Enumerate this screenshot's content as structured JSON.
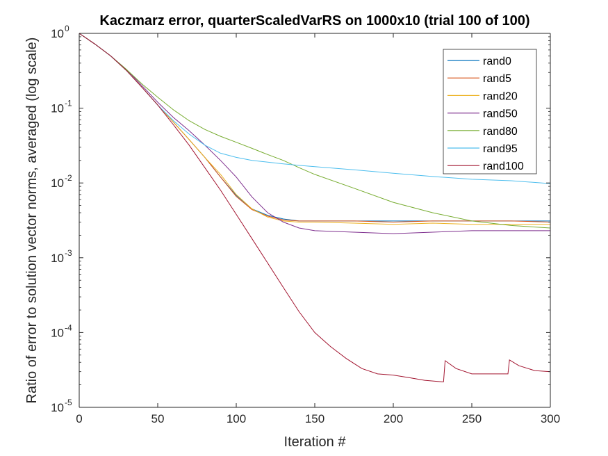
{
  "chart_data": {
    "type": "line",
    "title": "Kaczmarz error, quarterScaledVarRS on 1000x10 (trial 100 of 100)",
    "xlabel": "Iteration #",
    "ylabel": "Ratio of error to solution vector norms, averaged (log scale)",
    "xlim": [
      0,
      300
    ],
    "ylim": [
      1e-05,
      1
    ],
    "yscale": "log",
    "grid": false,
    "legend_position": "top-right",
    "x_ticks": [
      0,
      50,
      100,
      150,
      200,
      250,
      300
    ],
    "x_tick_labels": [
      "0",
      "50",
      "100",
      "150",
      "200",
      "250",
      "300"
    ],
    "y_ticks": [
      {
        "value": 1,
        "base": "10",
        "exp": "0"
      },
      {
        "value": 0.1,
        "base": "10",
        "exp": "-1"
      },
      {
        "value": 0.01,
        "base": "10",
        "exp": "-2"
      },
      {
        "value": 0.001,
        "base": "10",
        "exp": "-3"
      },
      {
        "value": 0.0001,
        "base": "10",
        "exp": "-4"
      },
      {
        "value": 1e-05,
        "base": "10",
        "exp": "-5"
      }
    ],
    "series": [
      {
        "name": "rand0",
        "color": "#0072BD",
        "x": [
          0,
          10,
          20,
          30,
          40,
          50,
          60,
          70,
          80,
          90,
          100,
          110,
          120,
          130,
          140,
          150,
          175,
          200,
          225,
          250,
          275,
          300
        ],
        "y": [
          1,
          0.72,
          0.5,
          0.32,
          0.19,
          0.11,
          0.065,
          0.038,
          0.022,
          0.012,
          0.0068,
          0.0045,
          0.0037,
          0.0033,
          0.0031,
          0.0031,
          0.0031,
          0.0031,
          0.0031,
          0.0031,
          0.0031,
          0.0031
        ]
      },
      {
        "name": "rand5",
        "color": "#D95319",
        "x": [
          0,
          10,
          20,
          30,
          40,
          50,
          60,
          70,
          80,
          90,
          100,
          110,
          120,
          130,
          140,
          150,
          175,
          200,
          225,
          250,
          275,
          300
        ],
        "y": [
          1,
          0.72,
          0.5,
          0.32,
          0.19,
          0.11,
          0.065,
          0.038,
          0.022,
          0.012,
          0.0066,
          0.0044,
          0.0036,
          0.0032,
          0.0031,
          0.0031,
          0.0031,
          0.003,
          0.0031,
          0.0031,
          0.0031,
          0.003
        ]
      },
      {
        "name": "rand20",
        "color": "#EDB120",
        "x": [
          0,
          10,
          20,
          30,
          40,
          50,
          60,
          70,
          80,
          90,
          100,
          110,
          120,
          130,
          140,
          150,
          175,
          200,
          225,
          250,
          275,
          300
        ],
        "y": [
          1,
          0.72,
          0.5,
          0.32,
          0.19,
          0.11,
          0.065,
          0.038,
          0.022,
          0.013,
          0.007,
          0.0045,
          0.0035,
          0.0031,
          0.003,
          0.003,
          0.0029,
          0.0028,
          0.0029,
          0.0028,
          0.0028,
          0.0028
        ]
      },
      {
        "name": "rand50",
        "color": "#7E2F8E",
        "x": [
          0,
          10,
          20,
          30,
          40,
          50,
          60,
          70,
          80,
          90,
          100,
          110,
          120,
          130,
          140,
          150,
          175,
          200,
          225,
          250,
          275,
          300
        ],
        "y": [
          1,
          0.72,
          0.5,
          0.33,
          0.2,
          0.12,
          0.075,
          0.05,
          0.032,
          0.02,
          0.012,
          0.0065,
          0.004,
          0.003,
          0.0025,
          0.0023,
          0.0022,
          0.0021,
          0.0022,
          0.0023,
          0.0023,
          0.0023
        ]
      },
      {
        "name": "rand80",
        "color": "#77AC30",
        "x": [
          0,
          10,
          20,
          30,
          40,
          50,
          60,
          70,
          80,
          90,
          100,
          110,
          120,
          130,
          140,
          150,
          175,
          200,
          225,
          250,
          275,
          300
        ],
        "y": [
          1,
          0.72,
          0.5,
          0.33,
          0.21,
          0.14,
          0.095,
          0.068,
          0.052,
          0.042,
          0.035,
          0.029,
          0.024,
          0.02,
          0.016,
          0.013,
          0.0085,
          0.0055,
          0.004,
          0.0031,
          0.0027,
          0.0025
        ]
      },
      {
        "name": "rand95",
        "color": "#4DBEEE",
        "x": [
          0,
          10,
          20,
          30,
          40,
          50,
          60,
          70,
          80,
          90,
          100,
          110,
          120,
          130,
          140,
          150,
          175,
          200,
          225,
          250,
          275,
          300
        ],
        "y": [
          1,
          0.72,
          0.5,
          0.32,
          0.19,
          0.11,
          0.068,
          0.045,
          0.032,
          0.025,
          0.022,
          0.02,
          0.019,
          0.018,
          0.0172,
          0.0165,
          0.015,
          0.0135,
          0.0122,
          0.0112,
          0.0107,
          0.0098
        ]
      },
      {
        "name": "rand100",
        "color": "#A2142F",
        "x": [
          0,
          10,
          20,
          30,
          40,
          50,
          60,
          70,
          80,
          90,
          100,
          110,
          120,
          130,
          140,
          150,
          160,
          170,
          180,
          190,
          200,
          210,
          220,
          231,
          232,
          233,
          240,
          250,
          260,
          272,
          273,
          274,
          280,
          290,
          300
        ],
        "y": [
          1,
          0.72,
          0.5,
          0.32,
          0.19,
          0.11,
          0.06,
          0.032,
          0.016,
          0.008,
          0.0038,
          0.0018,
          0.00085,
          0.0004,
          0.00019,
          0.0001,
          6.5e-05,
          4.5e-05,
          3.3e-05,
          2.8e-05,
          2.7e-05,
          2.5e-05,
          2.3e-05,
          2.2e-05,
          2.2e-05,
          4.2e-05,
          3.3e-05,
          2.8e-05,
          2.8e-05,
          2.8e-05,
          2.8e-05,
          4.3e-05,
          3.6e-05,
          3.1e-05,
          3e-05
        ]
      }
    ]
  }
}
